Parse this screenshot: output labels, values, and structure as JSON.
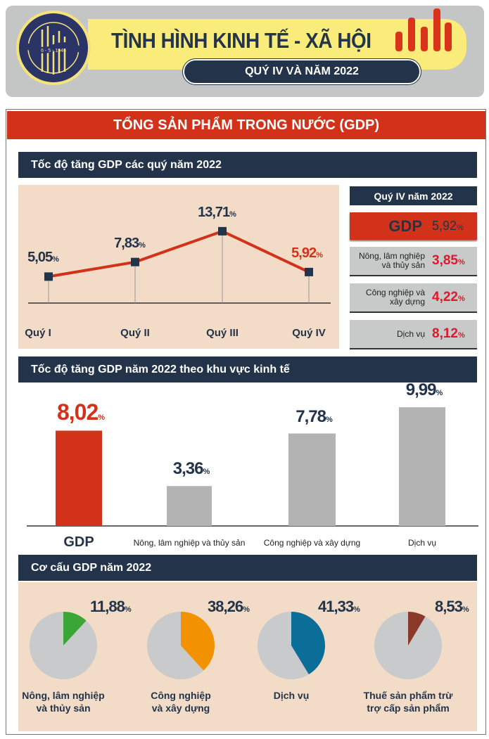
{
  "header": {
    "title": "TÌNH HÌNH KINH TẾ - XÃ HỘI",
    "subtitle": "QUÝ IV VÀ NĂM 2022",
    "logo": {
      "top_text": "CHXHCN VIỆT NAM",
      "date": "6 - 5 - 1946",
      "bottom_text": "TỔNG CỤC THỐNG KÊ"
    }
  },
  "main_title": "TỔNG SẢN PHẨM TRONG NƯỚC (GDP)",
  "colors": {
    "red": "#d3321a",
    "navy": "#23344a",
    "peach": "#f2dcc8",
    "gray": "#b3b3b3",
    "value_red": "#e0182d"
  },
  "chart_data": [
    {
      "type": "line",
      "title": "Tốc độ tăng GDP các quý năm 2022",
      "categories": [
        "Quý I",
        "Quý II",
        "Quý III",
        "Quý IV"
      ],
      "values": [
        5.05,
        7.83,
        13.71,
        5.92
      ],
      "labels": [
        "5,05",
        "7,83",
        "13,71",
        "5,92"
      ],
      "unit": "%"
    },
    {
      "type": "bar",
      "title": "Tốc độ tăng GDP năm 2022 theo khu vực kinh tế",
      "categories": [
        "GDP",
        "Nông, lâm nghiệp và thủy sản",
        "Công nghiệp và xây dựng",
        "Dịch vụ"
      ],
      "values": [
        8.02,
        3.36,
        7.78,
        9.99
      ],
      "labels": [
        "8,02",
        "3,36",
        "7,78",
        "9,99"
      ],
      "unit": "%"
    },
    {
      "type": "pie",
      "title": "Cơ cấu GDP năm 2022",
      "categories": [
        "Nông, lâm nghiệp và thủy sản",
        "Công nghiệp và xây dựng",
        "Dịch vụ",
        "Thuế sản phẩm trừ trợ cấp sản phẩm"
      ],
      "values": [
        11.88,
        38.26,
        41.33,
        8.53
      ],
      "labels": [
        "11,88",
        "38,26",
        "41,33",
        "8,53"
      ],
      "colors": [
        "#3aa635",
        "#f39200",
        "#0b6e99",
        "#8b3a2a"
      ],
      "unit": "%"
    }
  ],
  "quarter4": {
    "title": "Quý IV năm 2022",
    "gdp": {
      "label": "GDP",
      "value": "5,92",
      "unit": "%"
    },
    "items": [
      {
        "line1": "Nông, lâm nghiệp",
        "line2": "và thủy sản",
        "value": "3,85",
        "unit": "%"
      },
      {
        "line1": "Công nghiệp và",
        "line2": "xây dựng",
        "value": "4,22",
        "unit": "%"
      },
      {
        "line1": "Dịch vụ",
        "line2": "",
        "value": "8,12",
        "unit": "%"
      }
    ]
  },
  "pie_labels": [
    [
      "Nông, lâm nghiệp",
      "và thủy sản"
    ],
    [
      "Công nghiệp",
      "và xây dựng"
    ],
    [
      "Dịch vụ",
      ""
    ],
    [
      "Thuế sản phẩm trừ",
      "trợ cấp sản phẩm"
    ]
  ]
}
